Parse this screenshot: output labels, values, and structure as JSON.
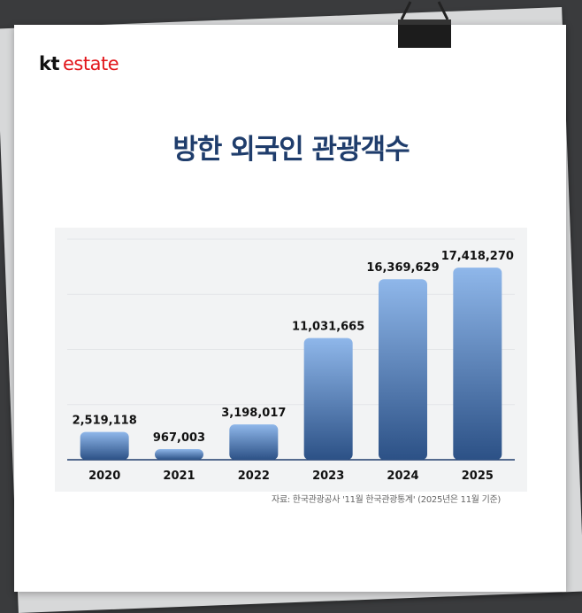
{
  "brand": {
    "kt": "kt",
    "estate": "estate"
  },
  "title": "방한 외국인 관광객수",
  "source": "자료: 한국관광공사 '11월 한국관광통계' (2025년은 11월 기준)",
  "colors": {
    "title": "#1f3d6c",
    "bar_top": "#8fb7ea",
    "bar_bottom": "#2c5186",
    "brand_red": "#e2161b"
  },
  "chart_data": {
    "type": "bar",
    "categories": [
      "2020",
      "2021",
      "2022",
      "2023",
      "2024",
      "2025"
    ],
    "values": [
      2519118,
      967003,
      3198017,
      11031665,
      16369629,
      17418270
    ],
    "value_labels": [
      "2,519,118",
      "967,003",
      "3,198,017",
      "11,031,665",
      "16,369,629",
      "17,418,270"
    ],
    "title": "방한 외국인 관광객수",
    "xlabel": "",
    "ylabel": "",
    "ylim": [
      0,
      20000000
    ],
    "grid": true,
    "legend": "none"
  }
}
